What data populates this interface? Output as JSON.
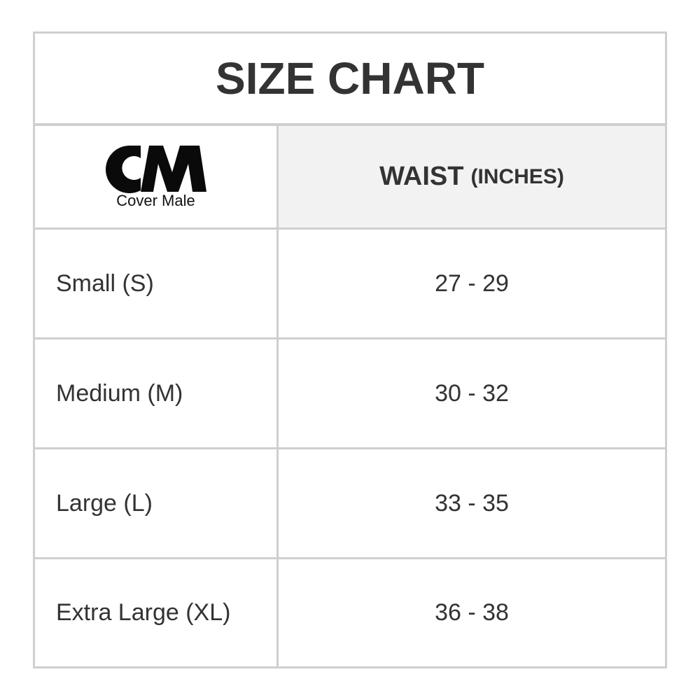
{
  "title": "SIZE CHART",
  "logo": {
    "text": "CM",
    "subtitle": "Cover Male"
  },
  "header": {
    "column": "WAIST",
    "unit": "(INCHES)"
  },
  "rows": [
    {
      "size": "Small (S)",
      "waist": "27 - 29"
    },
    {
      "size": "Medium (M)",
      "waist": "30 - 32"
    },
    {
      "size": "Large (L)",
      "waist": "33 - 35"
    },
    {
      "size": "Extra Large (XL)",
      "waist": "36 - 38"
    }
  ],
  "colors": {
    "border": "#cfcfcf",
    "header_bg": "#f2f2f2",
    "text": "#333333"
  }
}
